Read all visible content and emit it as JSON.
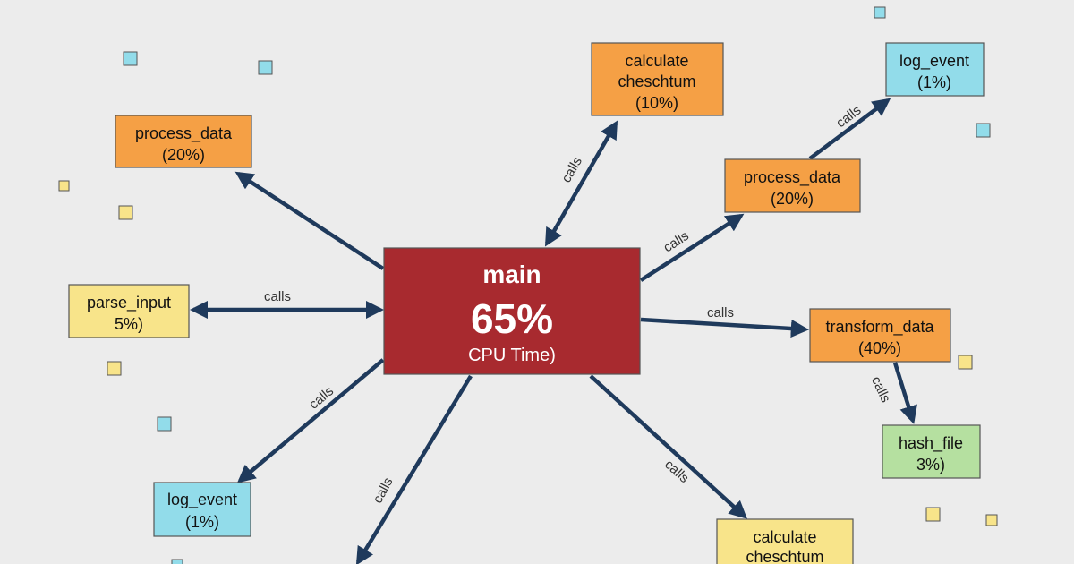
{
  "colors": {
    "main": "#a82a2f",
    "orange": "#f5a045",
    "yellow": "#f8e48a",
    "blue": "#92dcea",
    "green": "#b5e0a0",
    "edge": "#1f3a5c",
    "background": "#ececec"
  },
  "main": {
    "name": "main",
    "percent": "65%",
    "caption": "CPU Time)"
  },
  "nodes": [
    {
      "line1": "process_data",
      "line2": "(20%)"
    },
    {
      "line1": "parse_input",
      "line2": "5%)"
    },
    {
      "line1": "log_event",
      "line2": "(1%)"
    },
    {
      "line1": "calculate",
      "line2": "cheschtum",
      "line3": "(10%)"
    },
    {
      "line1": "log_event",
      "line2": "(1%)"
    },
    {
      "line1": "process_data",
      "line2": "(20%)"
    },
    {
      "line1": "transform_data",
      "line2": "(40%)"
    },
    {
      "line1": "hash_file",
      "line2": "3%)"
    },
    {
      "line1": "calculate",
      "line2": "cheschtum"
    }
  ],
  "edge_label": "calls"
}
